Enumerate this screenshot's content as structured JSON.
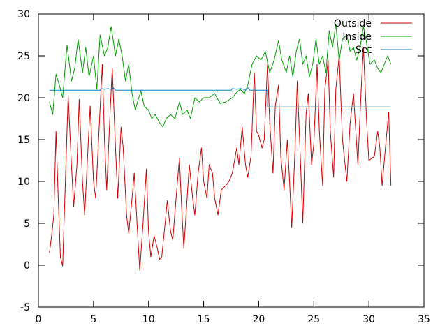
{
  "chart_data": {
    "type": "line",
    "xlim": [
      0,
      35
    ],
    "ylim": [
      -5,
      30
    ],
    "x_ticks": [
      0,
      5,
      10,
      15,
      20,
      25,
      30,
      35
    ],
    "y_ticks": [
      -5,
      0,
      5,
      10,
      15,
      20,
      25,
      30
    ],
    "x_tick_labels": [
      "0",
      "5",
      "10",
      "15",
      "20",
      "25",
      "30",
      "35"
    ],
    "y_tick_labels": [
      "-5",
      "0",
      "5",
      "10",
      "15",
      "20",
      "25",
      "30"
    ],
    "grid": false,
    "legend_position": "top-right",
    "series": [
      {
        "name": "Outside",
        "color": "#d00000",
        "points": [
          [
            1.0,
            1.5
          ],
          [
            1.2,
            3.5
          ],
          [
            1.4,
            6.0
          ],
          [
            1.6,
            16.0
          ],
          [
            1.8,
            8.0
          ],
          [
            2.0,
            1.0
          ],
          [
            2.2,
            -0.1
          ],
          [
            2.5,
            12.0
          ],
          [
            2.7,
            20.3
          ],
          [
            3.0,
            12.0
          ],
          [
            3.2,
            7.0
          ],
          [
            3.5,
            12.0
          ],
          [
            3.7,
            19.8
          ],
          [
            4.0,
            10.0
          ],
          [
            4.2,
            6.0
          ],
          [
            4.5,
            14.0
          ],
          [
            4.7,
            19.0
          ],
          [
            5.0,
            10.0
          ],
          [
            5.2,
            8.0
          ],
          [
            5.5,
            16.0
          ],
          [
            5.8,
            24.0
          ],
          [
            6.0,
            15.0
          ],
          [
            6.2,
            9.0
          ],
          [
            6.5,
            18.0
          ],
          [
            6.7,
            23.5
          ],
          [
            7.0,
            14.0
          ],
          [
            7.2,
            8.0
          ],
          [
            7.5,
            16.5
          ],
          [
            7.7,
            14.0
          ],
          [
            8.0,
            6.0
          ],
          [
            8.2,
            3.8
          ],
          [
            8.5,
            8.0
          ],
          [
            8.7,
            11.0
          ],
          [
            9.0,
            4.0
          ],
          [
            9.2,
            -0.6
          ],
          [
            9.5,
            5.0
          ],
          [
            9.8,
            11.5
          ],
          [
            10.0,
            4.0
          ],
          [
            10.2,
            1.0
          ],
          [
            10.5,
            3.5
          ],
          [
            10.8,
            2.0
          ],
          [
            11.0,
            0.7
          ],
          [
            11.2,
            1.0
          ],
          [
            11.5,
            5.0
          ],
          [
            11.7,
            7.7
          ],
          [
            12.0,
            4.0
          ],
          [
            12.2,
            3.0
          ],
          [
            12.5,
            8.0
          ],
          [
            12.8,
            12.8
          ],
          [
            13.0,
            7.0
          ],
          [
            13.2,
            2.0
          ],
          [
            13.5,
            8.0
          ],
          [
            13.7,
            12.0
          ],
          [
            14.0,
            8.0
          ],
          [
            14.2,
            6.0
          ],
          [
            14.5,
            11.0
          ],
          [
            14.8,
            14.0
          ],
          [
            15.0,
            10.0
          ],
          [
            15.3,
            8.0
          ],
          [
            15.5,
            12.0
          ],
          [
            15.8,
            11.0
          ],
          [
            16.0,
            8.0
          ],
          [
            16.3,
            6.0
          ],
          [
            16.6,
            9.0
          ],
          [
            17.0,
            9.5
          ],
          [
            17.3,
            10.0
          ],
          [
            17.6,
            11.0
          ],
          [
            18.0,
            14.0
          ],
          [
            18.2,
            12.0
          ],
          [
            18.5,
            16.5
          ],
          [
            18.8,
            12.0
          ],
          [
            19.0,
            10.5
          ],
          [
            19.3,
            13.0
          ],
          [
            19.6,
            23.0
          ],
          [
            19.8,
            16.0
          ],
          [
            20.0,
            15.5
          ],
          [
            20.3,
            14.0
          ],
          [
            20.5,
            15.0
          ],
          [
            20.8,
            24.0
          ],
          [
            21.0,
            17.0
          ],
          [
            21.3,
            11.0
          ],
          [
            21.5,
            19.0
          ],
          [
            21.8,
            21.5
          ],
          [
            22.0,
            13.0
          ],
          [
            22.3,
            9.0
          ],
          [
            22.6,
            15.0
          ],
          [
            22.8,
            10.0
          ],
          [
            23.0,
            4.5
          ],
          [
            23.3,
            14.0
          ],
          [
            23.5,
            22.0
          ],
          [
            23.8,
            12.0
          ],
          [
            24.0,
            5.0
          ],
          [
            24.3,
            18.0
          ],
          [
            24.5,
            20.5
          ],
          [
            24.8,
            12.0
          ],
          [
            25.0,
            14.5
          ],
          [
            25.3,
            24.0
          ],
          [
            25.5,
            16.0
          ],
          [
            25.8,
            9.5
          ],
          [
            26.0,
            21.0
          ],
          [
            26.3,
            24.5
          ],
          [
            26.5,
            16.0
          ],
          [
            26.8,
            10.5
          ],
          [
            27.0,
            21.0
          ],
          [
            27.3,
            25.0
          ],
          [
            27.6,
            15.0
          ],
          [
            28.0,
            10.0
          ],
          [
            28.3,
            17.0
          ],
          [
            28.6,
            20.5
          ],
          [
            29.0,
            12.0
          ],
          [
            29.3,
            21.0
          ],
          [
            29.5,
            26.0
          ],
          [
            29.8,
            17.0
          ],
          [
            30.0,
            12.5
          ],
          [
            30.5,
            13.0
          ],
          [
            30.8,
            16.0
          ],
          [
            31.0,
            14.0
          ],
          [
            31.2,
            9.5
          ],
          [
            31.5,
            14.0
          ],
          [
            31.8,
            18.3
          ],
          [
            32.0,
            9.5
          ]
        ]
      },
      {
        "name": "Inside",
        "color": "#00a000",
        "points": [
          [
            1.0,
            19.5
          ],
          [
            1.3,
            18.0
          ],
          [
            1.6,
            22.8
          ],
          [
            1.9,
            21.5
          ],
          [
            2.2,
            20.0
          ],
          [
            2.6,
            26.3
          ],
          [
            3.0,
            22.0
          ],
          [
            3.3,
            23.5
          ],
          [
            3.6,
            27.0
          ],
          [
            4.0,
            23.0
          ],
          [
            4.3,
            26.0
          ],
          [
            4.6,
            22.5
          ],
          [
            5.0,
            25.0
          ],
          [
            5.3,
            21.0
          ],
          [
            5.6,
            27.5
          ],
          [
            6.0,
            25.0
          ],
          [
            6.3,
            26.0
          ],
          [
            6.6,
            28.5
          ],
          [
            7.0,
            25.0
          ],
          [
            7.3,
            27.0
          ],
          [
            7.6,
            25.0
          ],
          [
            7.9,
            22.0
          ],
          [
            8.2,
            24.0
          ],
          [
            8.5,
            20.5
          ],
          [
            8.8,
            18.5
          ],
          [
            9.0,
            19.5
          ],
          [
            9.3,
            20.8
          ],
          [
            9.6,
            19.0
          ],
          [
            10.0,
            18.5
          ],
          [
            10.3,
            17.5
          ],
          [
            10.6,
            18.0
          ],
          [
            11.0,
            17.0
          ],
          [
            11.3,
            16.5
          ],
          [
            11.6,
            17.5
          ],
          [
            12.0,
            18.0
          ],
          [
            12.4,
            17.5
          ],
          [
            12.8,
            19.5
          ],
          [
            13.1,
            18.0
          ],
          [
            13.5,
            18.5
          ],
          [
            13.8,
            17.5
          ],
          [
            14.2,
            20.0
          ],
          [
            14.6,
            19.5
          ],
          [
            15.0,
            20.0
          ],
          [
            15.5,
            20.0
          ],
          [
            16.0,
            20.5
          ],
          [
            16.5,
            19.3
          ],
          [
            17.0,
            19.5
          ],
          [
            17.6,
            20.0
          ],
          [
            17.9,
            20.5
          ],
          [
            18.3,
            21.0
          ],
          [
            18.7,
            20.5
          ],
          [
            19.0,
            21.5
          ],
          [
            19.4,
            24.0
          ],
          [
            19.8,
            25.0
          ],
          [
            20.2,
            24.5
          ],
          [
            20.6,
            25.5
          ],
          [
            21.0,
            23.0
          ],
          [
            21.4,
            24.5
          ],
          [
            21.8,
            26.8
          ],
          [
            22.1,
            24.5
          ],
          [
            22.5,
            23.0
          ],
          [
            22.8,
            25.0
          ],
          [
            23.1,
            22.5
          ],
          [
            23.4,
            25.5
          ],
          [
            23.7,
            27.0
          ],
          [
            24.0,
            24.0
          ],
          [
            24.3,
            25.0
          ],
          [
            24.6,
            22.5
          ],
          [
            24.9,
            24.0
          ],
          [
            25.2,
            27.0
          ],
          [
            25.5,
            24.0
          ],
          [
            25.8,
            25.0
          ],
          [
            26.1,
            23.0
          ],
          [
            26.4,
            28.0
          ],
          [
            26.7,
            26.0
          ],
          [
            27.0,
            28.8
          ],
          [
            27.3,
            24.5
          ],
          [
            27.6,
            27.0
          ],
          [
            28.0,
            27.5
          ],
          [
            28.3,
            25.5
          ],
          [
            28.6,
            26.0
          ],
          [
            28.9,
            24.5
          ],
          [
            29.2,
            26.0
          ],
          [
            29.5,
            28.5
          ],
          [
            29.8,
            26.5
          ],
          [
            30.1,
            24.0
          ],
          [
            30.5,
            24.5
          ],
          [
            30.8,
            23.5
          ],
          [
            31.1,
            23.0
          ],
          [
            31.4,
            24.0
          ],
          [
            31.7,
            25.0
          ],
          [
            32.0,
            24.0
          ]
        ]
      },
      {
        "name": "Set",
        "color": "#0080c0",
        "points": [
          [
            1.0,
            20.9
          ],
          [
            5.6,
            20.9
          ],
          [
            5.7,
            21.1
          ],
          [
            6.0,
            21.0
          ],
          [
            6.3,
            21.1
          ],
          [
            6.6,
            21.0
          ],
          [
            6.8,
            21.2
          ],
          [
            7.0,
            20.9
          ],
          [
            17.5,
            20.9
          ],
          [
            17.6,
            21.1
          ],
          [
            18.0,
            21.0
          ],
          [
            18.4,
            21.1
          ],
          [
            18.8,
            20.9
          ],
          [
            19.0,
            21.2
          ],
          [
            19.2,
            20.9
          ],
          [
            20.8,
            20.9
          ],
          [
            20.8,
            18.9
          ],
          [
            32.0,
            18.9
          ]
        ]
      }
    ]
  }
}
